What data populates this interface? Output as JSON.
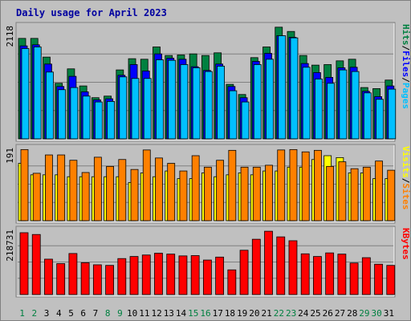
{
  "chart_data": [
    {
      "type": "bar",
      "title": "Daily usage for April 2023",
      "y_axis_label": "2118",
      "ylim": [
        0,
        2118
      ],
      "legend": [
        "Pages",
        "Files",
        "Hits"
      ],
      "legend_separator": "/",
      "categories": [
        "1",
        "2",
        "3",
        "4",
        "5",
        "6",
        "7",
        "8",
        "9",
        "10",
        "11",
        "12",
        "13",
        "14",
        "15",
        "16",
        "17",
        "18",
        "19",
        "20",
        "21",
        "22",
        "23",
        "24",
        "25",
        "26",
        "27",
        "28",
        "29",
        "30",
        "31"
      ],
      "series": [
        {
          "name": "Hits",
          "color": "#008040",
          "values": [
            1880,
            1880,
            1530,
            1040,
            1310,
            990,
            770,
            800,
            1290,
            1500,
            1490,
            1720,
            1560,
            1570,
            1590,
            1560,
            1610,
            1020,
            830,
            1520,
            1720,
            2090,
            2010,
            1560,
            1380,
            1390,
            1460,
            1490,
            960,
            940,
            1100
          ]
        },
        {
          "name": "Files",
          "color": "#0000ff",
          "values": [
            1740,
            1760,
            1400,
            980,
            1170,
            880,
            730,
            750,
            1190,
            1390,
            1270,
            1590,
            1510,
            1490,
            1350,
            1280,
            1400,
            980,
            770,
            1450,
            1600,
            1930,
            1900,
            1410,
            1240,
            1150,
            1330,
            1340,
            890,
            790,
            990
          ]
        },
        {
          "name": "Pages",
          "color": "#00c0ff",
          "values": [
            1690,
            1720,
            1250,
            920,
            960,
            800,
            690,
            700,
            1160,
            1130,
            1130,
            1480,
            1470,
            1390,
            1330,
            1260,
            1360,
            900,
            690,
            1390,
            1490,
            1930,
            1890,
            1340,
            1120,
            1040,
            1290,
            1260,
            860,
            740,
            930
          ]
        }
      ]
    },
    {
      "type": "bar",
      "y_axis_label": "191",
      "ylim": [
        0,
        191
      ],
      "legend": [
        "Sites",
        "Visits"
      ],
      "legend_separator": "/",
      "series": [
        {
          "name": "Visits",
          "color": "#ffff00",
          "values": [
            150,
            120,
            120,
            120,
            115,
            115,
            115,
            115,
            115,
            100,
            125,
            115,
            130,
            110,
            110,
            125,
            115,
            120,
            125,
            120,
            130,
            130,
            140,
            140,
            160,
            170,
            165,
            125,
            125,
            110,
            110
          ]
        },
        {
          "name": "Sites",
          "color": "#ff8000",
          "values": [
            186,
            124,
            172,
            172,
            158,
            126,
            166,
            142,
            160,
            134,
            185,
            164,
            150,
            130,
            170,
            140,
            158,
            184,
            140,
            140,
            145,
            185,
            186,
            180,
            184,
            142,
            154,
            136,
            140,
            156,
            132
          ]
        }
      ]
    },
    {
      "type": "bar",
      "y_axis_label": "218731",
      "ylim": [
        0,
        218731
      ],
      "legend": [
        "KBytes"
      ],
      "series": [
        {
          "name": "KBytes",
          "color": "#ff0000",
          "values": [
            208000,
            202000,
            119000,
            104000,
            138000,
            107000,
            100000,
            98000,
            121000,
            128000,
            133000,
            139000,
            136000,
            130000,
            131000,
            116000,
            126000,
            83000,
            149000,
            186000,
            213000,
            194000,
            181000,
            137000,
            128000,
            140000,
            136000,
            106000,
            124000,
            102000,
            98000
          ]
        }
      ]
    }
  ],
  "x_axis": {
    "weekend_days": [
      "1",
      "2",
      "8",
      "9",
      "15",
      "16",
      "22",
      "23",
      "29",
      "30"
    ],
    "weekend_color": "#008040",
    "weekday_color": "#000000"
  }
}
